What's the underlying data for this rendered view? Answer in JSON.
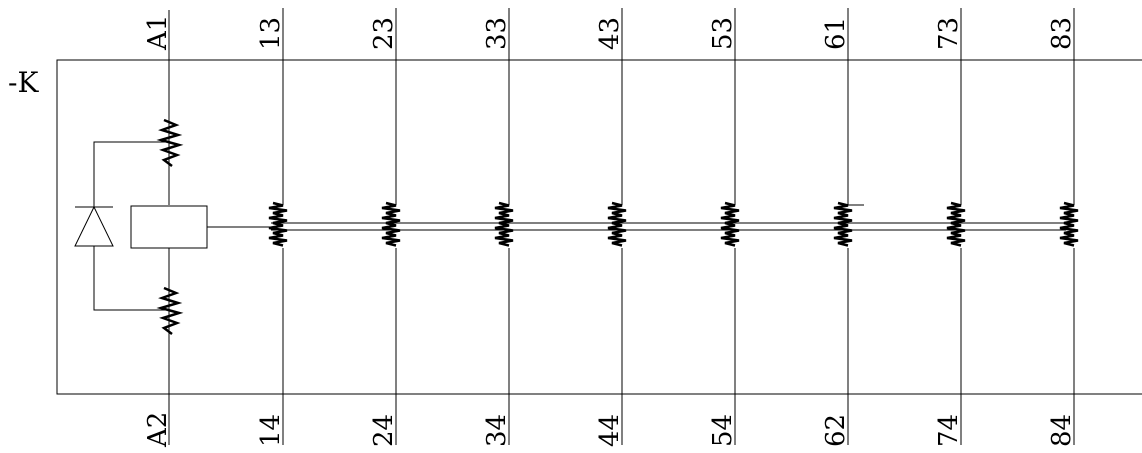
{
  "device_tag": "-K",
  "coil": {
    "top_terminal": "A1",
    "bottom_terminal": "A2"
  },
  "contacts": [
    {
      "top": "13",
      "bottom": "14",
      "type": "NO"
    },
    {
      "top": "23",
      "bottom": "24",
      "type": "NO"
    },
    {
      "top": "33",
      "bottom": "34",
      "type": "NO"
    },
    {
      "top": "43",
      "bottom": "44",
      "type": "NO"
    },
    {
      "top": "53",
      "bottom": "54",
      "type": "NO"
    },
    {
      "top": "61",
      "bottom": "62",
      "type": "NC"
    },
    {
      "top": "73",
      "bottom": "74",
      "type": "NO"
    },
    {
      "top": "83",
      "bottom": "84",
      "type": "NO"
    }
  ],
  "colors": {
    "line": "#000000",
    "background": "#ffffff"
  }
}
